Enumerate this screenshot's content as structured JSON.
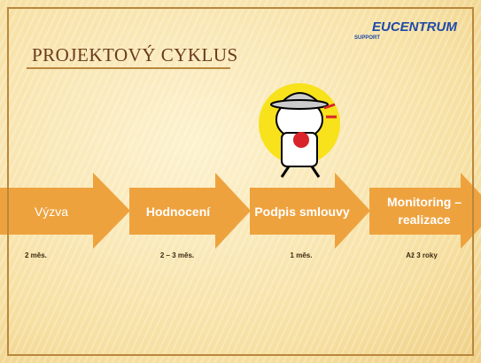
{
  "header": {
    "logo": "EUCENTRUM",
    "logo_sub": "SUPPORT",
    "title": "PROJEKTOVÝ CYKLUS"
  },
  "steps": [
    {
      "label": "Výzva",
      "duration": "2 měs."
    },
    {
      "label": "Hodnocení",
      "duration": "2 – 3 měs."
    },
    {
      "label": "Podpis smlouvy",
      "duration": "1 měs."
    },
    {
      "label": "Monitoring – realizace",
      "duration": "Až 3 roky"
    }
  ]
}
